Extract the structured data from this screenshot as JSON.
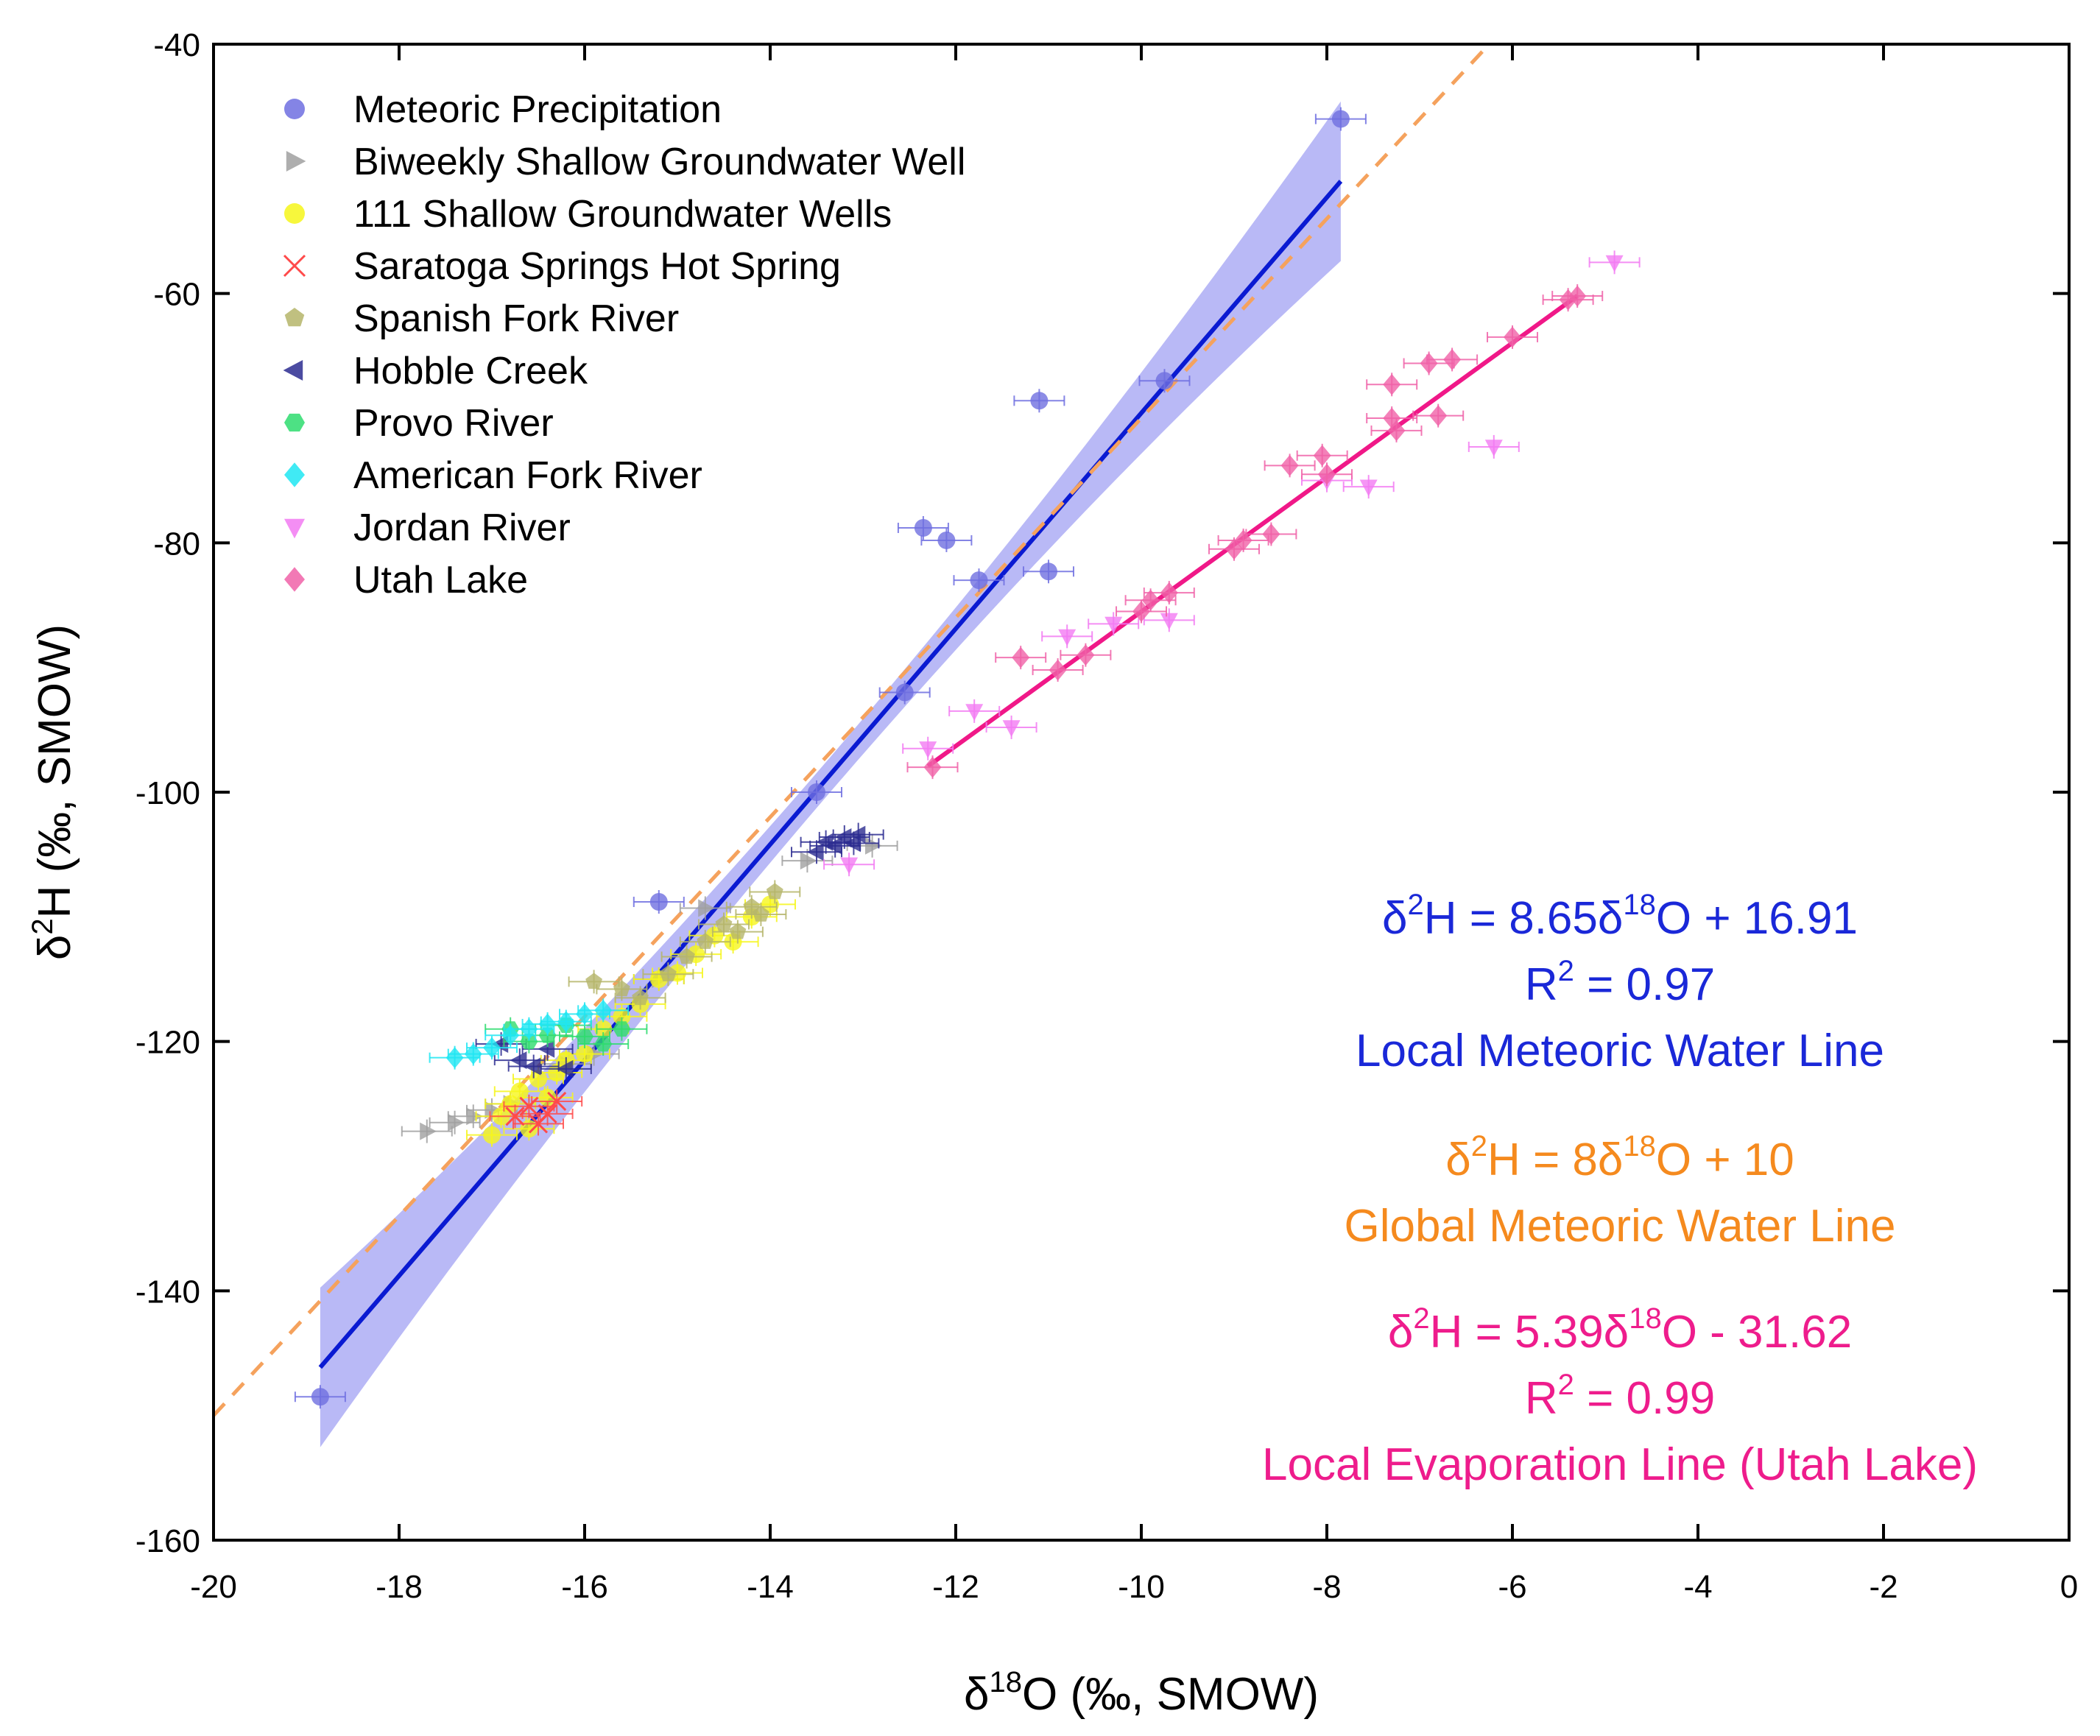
{
  "chart_data": {
    "type": "scatter",
    "xlabel": "δ18O (‰, SMOW)",
    "ylabel": "δ2H (‰, SMOW)",
    "xlim": [
      -20,
      0
    ],
    "ylim": [
      -160,
      -40
    ],
    "xticks": [
      -20,
      -18,
      -16,
      -14,
      -12,
      -10,
      -8,
      -6,
      -4,
      -2,
      0
    ],
    "yticks": [
      -160,
      -140,
      -120,
      -100,
      -80,
      -60,
      -40
    ],
    "xtick_labels": [
      "-20",
      "-18",
      "-16",
      "-14",
      "-12",
      "-10",
      "-8",
      "-6",
      "-4",
      "-2",
      "0"
    ],
    "ytick_labels": [
      "-160",
      "-140",
      "-120",
      "-100",
      "-80",
      "-60",
      "-40"
    ],
    "grid": false,
    "legend_position": "top-left",
    "series": [
      {
        "name": "Meteoric Precipitation",
        "marker": "circle",
        "color": "#6f6fe0",
        "points": [
          [
            -18.85,
            -148.5
          ],
          [
            -15.2,
            -108.8
          ],
          [
            -13.5,
            -100
          ],
          [
            -12.55,
            -92
          ],
          [
            -12.35,
            -78.8
          ],
          [
            -12.1,
            -79.8
          ],
          [
            -11.75,
            -83
          ],
          [
            -11.1,
            -68.6
          ],
          [
            -11.0,
            -82.3
          ],
          [
            -9.75,
            -67
          ],
          [
            -7.85,
            -46
          ]
        ]
      },
      {
        "name": "Biweekly Shallow Groundwater Well",
        "marker": "triangle-right",
        "color": "#a0a0a0",
        "points": [
          [
            -17.7,
            -127.2
          ],
          [
            -17.4,
            -126.5
          ],
          [
            -17.2,
            -126
          ],
          [
            -17.0,
            -125.5
          ],
          [
            -16.8,
            -125
          ],
          [
            -16.2,
            -121.8
          ],
          [
            -15.9,
            -121
          ],
          [
            -15.2,
            -115
          ],
          [
            -14.7,
            -109.3
          ],
          [
            -13.6,
            -105.5
          ],
          [
            -12.9,
            -104.3
          ]
        ]
      },
      {
        "name": "111 Shallow Groundwater Wells",
        "marker": "circle",
        "color": "#f6f61a",
        "points": [
          [
            -17.0,
            -127.5
          ],
          [
            -16.9,
            -126
          ],
          [
            -16.8,
            -125
          ],
          [
            -16.7,
            -124
          ],
          [
            -16.6,
            -127
          ],
          [
            -16.5,
            -123
          ],
          [
            -16.4,
            -124.5
          ],
          [
            -16.3,
            -122.5
          ],
          [
            -16.2,
            -121.5
          ],
          [
            -16.0,
            -121
          ],
          [
            -15.8,
            -119
          ],
          [
            -15.6,
            -118
          ],
          [
            -15.4,
            -117
          ],
          [
            -15.2,
            -115
          ],
          [
            -15.0,
            -114.5
          ],
          [
            -14.8,
            -113
          ],
          [
            -14.6,
            -111.5
          ],
          [
            -14.4,
            -112
          ],
          [
            -14.2,
            -110
          ],
          [
            -14.0,
            -109
          ]
        ]
      },
      {
        "name": "Saratoga Springs Hot Spring",
        "marker": "x",
        "color": "#ff4a4a",
        "points": [
          [
            -16.75,
            -126
          ],
          [
            -16.6,
            -125.2
          ],
          [
            -16.5,
            -126.6
          ],
          [
            -16.4,
            -125.8
          ],
          [
            -16.3,
            -124.8
          ]
        ]
      },
      {
        "name": "Spanish Fork River",
        "marker": "pentagon",
        "color": "#b5b56a",
        "points": [
          [
            -15.9,
            -115.2
          ],
          [
            -15.6,
            -115.8
          ],
          [
            -15.4,
            -116.5
          ],
          [
            -15.1,
            -114.6
          ],
          [
            -14.9,
            -113.2
          ],
          [
            -14.7,
            -112
          ],
          [
            -14.5,
            -110.6
          ],
          [
            -14.35,
            -111.2
          ],
          [
            -14.2,
            -109.2
          ],
          [
            -14.1,
            -109.8
          ],
          [
            -13.95,
            -108
          ]
        ]
      },
      {
        "name": "Hobble Creek",
        "marker": "triangle-left",
        "color": "#2c2c90",
        "points": [
          [
            -16.9,
            -120.2
          ],
          [
            -16.7,
            -121.5
          ],
          [
            -16.55,
            -122
          ],
          [
            -16.4,
            -120.6
          ],
          [
            -16.2,
            -122.2
          ],
          [
            -13.5,
            -104.8
          ],
          [
            -13.4,
            -104
          ],
          [
            -13.3,
            -104.3
          ],
          [
            -13.2,
            -103.6
          ],
          [
            -13.1,
            -104.1
          ],
          [
            -13.05,
            -103.4
          ]
        ]
      },
      {
        "name": "Provo River",
        "marker": "hexagon",
        "color": "#2edc6e",
        "points": [
          [
            -16.8,
            -119
          ],
          [
            -16.6,
            -120
          ],
          [
            -16.4,
            -119.5
          ],
          [
            -16.2,
            -118.7
          ],
          [
            -16.0,
            -119.6
          ],
          [
            -15.8,
            -120.2
          ],
          [
            -15.6,
            -119
          ]
        ]
      },
      {
        "name": "American Fork River",
        "marker": "diamond",
        "color": "#1fe6f2",
        "points": [
          [
            -17.4,
            -121.3
          ],
          [
            -17.2,
            -121
          ],
          [
            -17.0,
            -120.5
          ],
          [
            -16.8,
            -119.5
          ],
          [
            -16.6,
            -119
          ],
          [
            -16.4,
            -118.6
          ],
          [
            -16.2,
            -118.4
          ],
          [
            -16.0,
            -117.8
          ],
          [
            -15.8,
            -117.5
          ]
        ]
      },
      {
        "name": "Jordan River",
        "marker": "triangle-down",
        "color": "#f27af2",
        "points": [
          [
            -12.3,
            -96.5
          ],
          [
            -11.8,
            -93.5
          ],
          [
            -11.4,
            -94.8
          ],
          [
            -10.8,
            -87.5
          ],
          [
            -10.3,
            -86.5
          ],
          [
            -9.7,
            -86.2
          ],
          [
            -8.0,
            -75
          ],
          [
            -7.55,
            -75.5
          ],
          [
            -6.2,
            -72.3
          ],
          [
            -4.9,
            -57.5
          ],
          [
            -13.15,
            -105.8
          ]
        ]
      },
      {
        "name": "Utah Lake",
        "marker": "diamond",
        "color": "#f062a8",
        "points": [
          [
            -12.25,
            -98
          ],
          [
            -11.3,
            -89.2
          ],
          [
            -10.9,
            -90.2
          ],
          [
            -10.6,
            -89
          ],
          [
            -10.0,
            -85.5
          ],
          [
            -9.9,
            -84.6
          ],
          [
            -9.7,
            -84
          ],
          [
            -9.0,
            -80.5
          ],
          [
            -8.9,
            -79.8
          ],
          [
            -8.6,
            -79.3
          ],
          [
            -8.4,
            -73.8
          ],
          [
            -8.05,
            -73
          ],
          [
            -8.0,
            -74.5
          ],
          [
            -7.3,
            -70
          ],
          [
            -7.25,
            -71
          ],
          [
            -7.3,
            -67.3
          ],
          [
            -6.9,
            -65.6
          ],
          [
            -6.8,
            -69.8
          ],
          [
            -6.65,
            -65.3
          ],
          [
            -6.0,
            -63.5
          ],
          [
            -5.4,
            -60.5
          ],
          [
            -5.3,
            -60.2
          ]
        ]
      }
    ],
    "lines": [
      {
        "name": "Local Meteoric Water Line",
        "slope": 8.65,
        "intercept": 16.91,
        "x_range": [
          -18.85,
          -7.85
        ],
        "color": "#0a1ad2",
        "style": "solid",
        "confidence_band": true,
        "band_color": "#8080ee"
      },
      {
        "name": "Global Meteoric Water Line",
        "slope": 8,
        "intercept": 10,
        "x_range": [
          -20,
          -6.3
        ],
        "color": "#f5a25d",
        "style": "dashed"
      },
      {
        "name": "Local Evaporation Line (Utah Lake)",
        "slope": 5.39,
        "intercept": -31.62,
        "x_range": [
          -12.3,
          -5.3
        ],
        "color": "#f01888",
        "style": "solid"
      }
    ],
    "annotations": [
      {
        "id": "lmwl",
        "color": "#1a28d8",
        "lines": [
          [
            {
              "t": "δ"
            },
            {
              "t": "2",
              "sup": true
            },
            {
              "t": "H = 8.65δ"
            },
            {
              "t": "18",
              "sup": true
            },
            {
              "t": "O + 16.91"
            }
          ],
          [
            {
              "t": "R"
            },
            {
              "t": "2",
              "sup": true
            },
            {
              "t": " = 0.97"
            }
          ],
          [
            {
              "t": "Local Meteoric Water Line"
            }
          ]
        ]
      },
      {
        "id": "gmwl",
        "color": "#f58a1e",
        "lines": [
          [
            {
              "t": "δ"
            },
            {
              "t": "2",
              "sup": true
            },
            {
              "t": "H = 8δ"
            },
            {
              "t": "18",
              "sup": true
            },
            {
              "t": "O + 10"
            }
          ],
          [
            {
              "t": "Global Meteoric Water Line"
            }
          ]
        ]
      },
      {
        "id": "lel",
        "color": "#ee1c8c",
        "lines": [
          [
            {
              "t": "δ"
            },
            {
              "t": "2",
              "sup": true
            },
            {
              "t": "H = 5.39δ"
            },
            {
              "t": "18",
              "sup": true
            },
            {
              "t": "O - 31.62"
            }
          ],
          [
            {
              "t": "R"
            },
            {
              "t": "2",
              "sup": true
            },
            {
              "t": " = 0.99"
            }
          ],
          [
            {
              "t": "Local Evaporation Line (Utah Lake)"
            }
          ]
        ]
      }
    ]
  }
}
